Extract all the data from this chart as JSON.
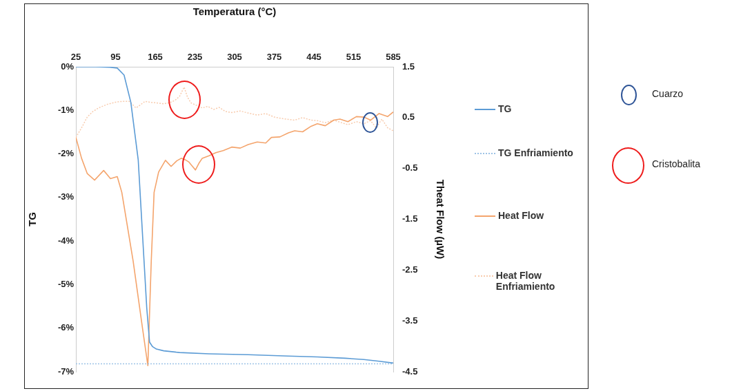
{
  "chart_data": {
    "type": "line",
    "xlabel": "Temperatura (°C)",
    "ylabel": "TG",
    "y2label": "Theat Flow (µW)",
    "xlim": [
      25,
      585
    ],
    "xticks": [
      25,
      95,
      165,
      235,
      305,
      375,
      445,
      515,
      585
    ],
    "ylim": [
      -7,
      0
    ],
    "yticks": [
      {
        "value": 0,
        "label": "0%"
      },
      {
        "value": -1,
        "label": "-1%"
      },
      {
        "value": -2,
        "label": "-2%"
      },
      {
        "value": -3,
        "label": "-3%"
      },
      {
        "value": -4,
        "label": "-4%"
      },
      {
        "value": -5,
        "label": "-5%"
      },
      {
        "value": -6,
        "label": "-6%"
      },
      {
        "value": -7,
        "label": "-7%"
      }
    ],
    "y2lim": [
      -4.5,
      1.5
    ],
    "y2ticks": [
      1.5,
      0.5,
      -0.5,
      -1.5,
      -2.5,
      -3.5,
      -4.5
    ],
    "grid": false,
    "legend": "right",
    "marker": "none",
    "annotations": [
      "Cuarzo",
      "Cristobalita"
    ],
    "series": [
      {
        "name": "TG",
        "color": "#5b9bd5",
        "line_style": "solid",
        "x": [
          25,
          60,
          85,
          98,
          110,
          122,
          135,
          143,
          150,
          155,
          160,
          167,
          180,
          208,
          260,
          329,
          400,
          451,
          500,
          533,
          560,
          585
        ],
        "values": [
          0,
          0,
          -0.01,
          -0.03,
          -0.19,
          -0.82,
          -2.14,
          -3.95,
          -5.53,
          -6.32,
          -6.42,
          -6.48,
          -6.52,
          -6.56,
          -6.59,
          -6.61,
          -6.64,
          -6.66,
          -6.69,
          -6.72,
          -6.76,
          -6.8
        ]
      },
      {
        "name": "TG Enfriamiento",
        "color": "#9dc3e6",
        "line_style": "dotted",
        "x": [
          25,
          585
        ],
        "values": [
          -6.82,
          -6.82
        ]
      },
      {
        "name": "Heat Flow",
        "color": "#f4a46c",
        "line_style": "solid",
        "axis": "y2",
        "x": [
          25,
          35,
          45,
          58,
          74,
          86,
          98,
          106,
          126,
          143,
          152,
          156,
          158,
          163,
          171,
          183,
          193,
          203,
          211,
          218,
          224,
          230,
          236,
          242,
          248,
          260,
          272,
          285,
          300,
          315,
          329,
          345,
          360,
          370,
          385,
          400,
          411,
          425,
          440,
          451,
          465,
          480,
          491,
          505,
          520,
          533,
          545,
          560,
          575,
          585
        ],
        "values": [
          0.11,
          -0.3,
          -0.6,
          -0.73,
          -0.54,
          -0.7,
          -0.66,
          -0.97,
          -2.32,
          -3.68,
          -4.38,
          -3.0,
          -2.32,
          -0.97,
          -0.57,
          -0.34,
          -0.46,
          -0.35,
          -0.3,
          -0.33,
          -0.37,
          -0.45,
          -0.53,
          -0.4,
          -0.3,
          -0.25,
          -0.19,
          -0.15,
          -0.08,
          -0.1,
          -0.03,
          0.02,
          0.0,
          0.11,
          0.12,
          0.2,
          0.24,
          0.22,
          0.33,
          0.38,
          0.34,
          0.45,
          0.47,
          0.42,
          0.52,
          0.51,
          0.45,
          0.58,
          0.52,
          0.61
        ]
      },
      {
        "name": "Heat Flow Enfriamiento",
        "color": "#f8cbad",
        "line_style": "dotted",
        "axis": "y2",
        "x": [
          25,
          35,
          45,
          55,
          65,
          80,
          98,
          110,
          119,
          131,
          140,
          147,
          157,
          167,
          180,
          192,
          200,
          208,
          216,
          222,
          228,
          238,
          248,
          258,
          268,
          278,
          289,
          300,
          315,
          329,
          345,
          360,
          375,
          390,
          411,
          425,
          440,
          451,
          465,
          480,
          491,
          505,
          520,
          533,
          545,
          555,
          565,
          575,
          585
        ],
        "values": [
          0.11,
          0.3,
          0.51,
          0.62,
          0.69,
          0.76,
          0.81,
          0.82,
          0.82,
          0.69,
          0.76,
          0.82,
          0.8,
          0.79,
          0.77,
          0.8,
          0.84,
          0.92,
          1.1,
          0.9,
          0.79,
          0.74,
          0.69,
          0.72,
          0.66,
          0.7,
          0.62,
          0.6,
          0.63,
          0.59,
          0.55,
          0.58,
          0.51,
          0.48,
          0.45,
          0.5,
          0.45,
          0.44,
          0.4,
          0.45,
          0.41,
          0.36,
          0.42,
          0.38,
          0.44,
          0.3,
          0.47,
          0.3,
          0.24
        ]
      }
    ]
  }
}
